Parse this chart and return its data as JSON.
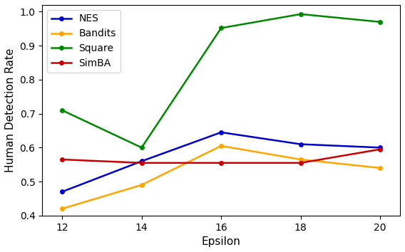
{
  "x": [
    12,
    14,
    16,
    18,
    20
  ],
  "NES": [
    0.47,
    0.56,
    0.645,
    0.61,
    0.6
  ],
  "Bandits": [
    0.42,
    0.49,
    0.605,
    0.565,
    0.54
  ],
  "Square": [
    0.71,
    0.6,
    0.952,
    0.993,
    0.97
  ],
  "SimBA": [
    0.565,
    0.555,
    0.555,
    0.555,
    0.595
  ],
  "colors": {
    "NES": "#0000cc",
    "Bandits": "#FFA500",
    "Square": "#008800",
    "SimBA": "#cc0000"
  },
  "xlabel": "Epsilon",
  "ylabel": "Human Detection Rate",
  "ylim": [
    0.4,
    1.02
  ],
  "xlim": [
    11.5,
    20.5
  ],
  "yticks": [
    0.4,
    0.5,
    0.6,
    0.7,
    0.8,
    0.9,
    1.0
  ],
  "xticks": [
    12,
    14,
    16,
    18,
    20
  ],
  "legend_loc": "upper left",
  "marker": "o",
  "linewidth": 1.8,
  "markersize": 4,
  "legend_fontsize": 10,
  "tick_fontsize": 10,
  "label_fontsize": 11
}
